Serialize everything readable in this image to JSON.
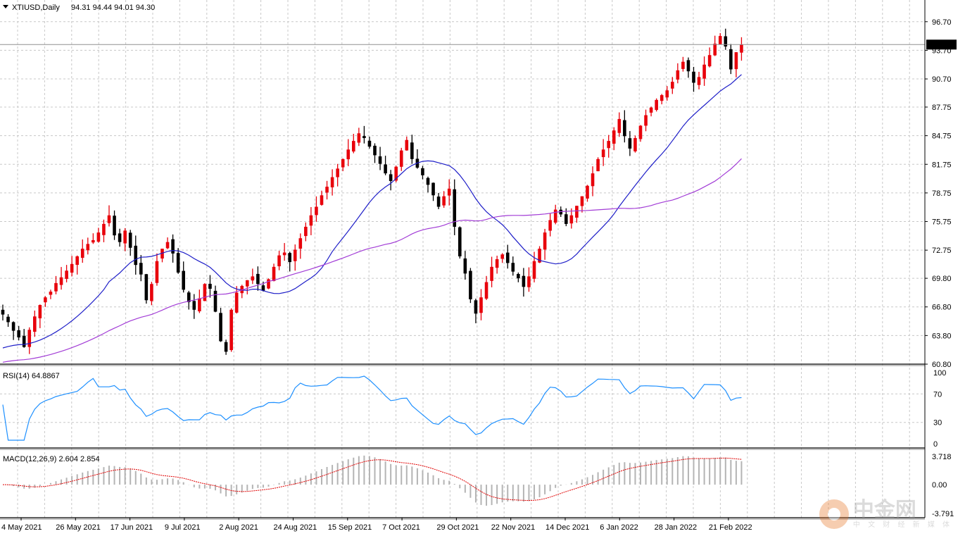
{
  "chart_data": [
    {
      "type": "candlestick",
      "title": "XTIUSD,Daily",
      "ohlc_header": "94.31 94.44 94.01 94.30",
      "current_price": 94.3,
      "current_price_label": "94.30",
      "ylim": [
        60.8,
        97.35
      ],
      "y_ticks": [
        "96.70",
        "93.70",
        "90.70",
        "87.75",
        "84.75",
        "81.75",
        "78.75",
        "75.75",
        "72.75",
        "69.80",
        "66.80",
        "63.80",
        "60.80"
      ],
      "x_ticks": [
        "4 May 2021",
        "26 May 2021",
        "17 Jun 2021",
        "9 Jul 2021",
        "2 Aug 2021",
        "24 Aug 2021",
        "15 Sep 2021",
        "7 Oct 2021",
        "29 Oct 2021",
        "22 Nov 2021",
        "14 Dec 2021",
        "6 Jan 2022",
        "28 Jan 2022",
        "21 Feb 2022"
      ],
      "close_path": [
        66.0,
        65.2,
        64.3,
        63.6,
        62.6,
        64.4,
        65.8,
        67.0,
        67.8,
        68.4,
        69.3,
        69.9,
        70.6,
        71.3,
        72.1,
        72.9,
        73.4,
        73.8,
        74.6,
        75.5,
        76.4,
        74.3,
        73.6,
        74.8,
        73.0,
        71.2,
        70.2,
        67.5,
        69.2,
        71.6,
        72.9,
        73.6,
        72.4,
        70.4,
        68.6,
        67.3,
        66.5,
        67.7,
        69.2,
        68.7,
        66.3,
        63.2,
        62.1,
        66.5,
        68.3,
        69.0,
        69.6,
        70.0,
        69.2,
        68.5,
        69.7,
        71.0,
        72.2,
        72.5,
        71.5,
        72.8,
        74.0,
        75.2,
        76.4,
        77.3,
        78.5,
        79.4,
        80.4,
        81.3,
        82.3,
        83.3,
        84.2,
        85.0,
        84.5,
        83.6,
        82.7,
        81.8,
        80.8,
        80.0,
        81.5,
        83.2,
        84.3,
        82.3,
        81.4,
        80.6,
        79.6,
        78.5,
        77.3,
        78.4,
        79.2,
        75.2,
        72.1,
        70.3,
        67.6,
        66.1,
        67.8,
        69.4,
        71.0,
        71.8,
        72.3,
        71.4,
        70.5,
        69.8,
        68.9,
        70.0,
        71.6,
        72.9,
        74.6,
        75.9,
        77.0,
        76.5,
        75.5,
        76.4,
        77.4,
        78.4,
        79.5,
        80.8,
        82.3,
        83.3,
        84.2,
        85.3,
        86.5,
        84.7,
        83.4,
        84.5,
        85.8,
        86.9,
        87.7,
        88.5,
        89.0,
        89.5,
        90.4,
        91.6,
        92.5,
        91.5,
        90.3,
        90.9,
        92.2,
        93.2,
        94.4,
        95.2,
        94.1,
        91.7,
        93.5,
        94.3
      ],
      "series": [
        {
          "name": "MA(20)",
          "color": "#1e1ec8"
        },
        {
          "name": "MA(50)",
          "color": "#a23cd6"
        }
      ],
      "bull_color": "#e8000b",
      "bear_color": "#000000"
    },
    {
      "type": "line",
      "title": "RSI(14) 64.8867",
      "ylim": [
        0,
        100
      ],
      "y_ticks": [
        "100",
        "70",
        "30",
        "0"
      ],
      "current_value": 64.8867,
      "series": [
        {
          "name": "RSI(14)",
          "color": "#1e90ff"
        }
      ]
    },
    {
      "type": "bar",
      "title": "MACD(12,26,9) 2.604 2.854",
      "ylim": [
        -3.791,
        3.718
      ],
      "y_ticks": [
        "3.718",
        "0.00",
        "-3.791"
      ],
      "macd": 2.604,
      "signal": 2.854,
      "series": [
        {
          "name": "MACD",
          "color": "#b4b4b4"
        },
        {
          "name": "Signal",
          "color": "#e00000"
        }
      ]
    }
  ],
  "watermark": {
    "cn": "中金网",
    "sub": "中 文 财 经 新 媒 体",
    "url": "CNGOLD.COM"
  }
}
